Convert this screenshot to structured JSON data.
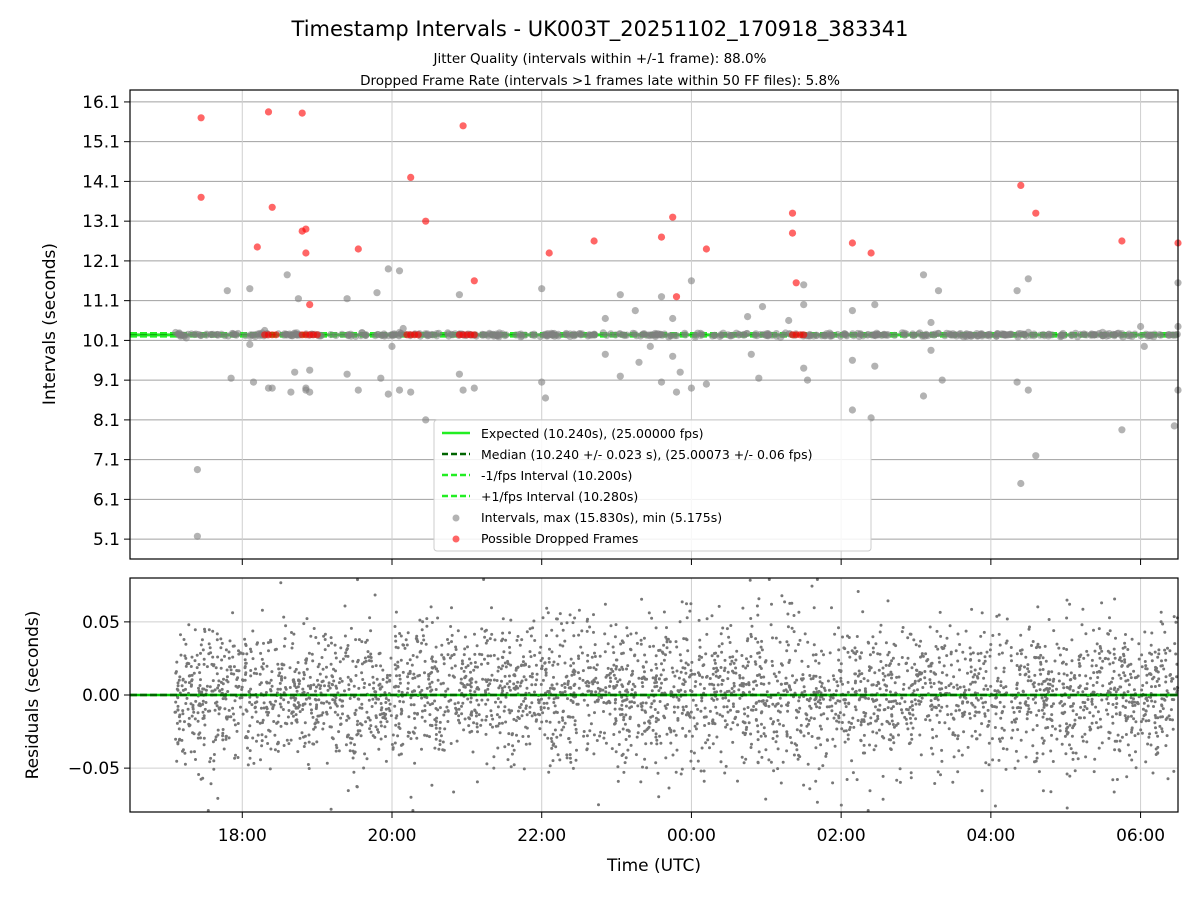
{
  "chart_data": [
    {
      "type": "scatter",
      "title": "Timestamp Intervals - UK003T_20251102_170918_383341",
      "subtitle_lines": [
        "Jitter Quality (intervals within +/-1 frame): 88.0%",
        "Dropped Frame Rate (intervals >1 frames late within 50 FF files): 5.8%"
      ],
      "ylabel": "Intervals (seconds)",
      "xlabel": "",
      "x_unit": "hours since 2025-11-02 00:00 UTC",
      "xlim": [
        16.5,
        30.5
      ],
      "ylim": [
        4.6,
        16.4
      ],
      "xtick_values": [
        18,
        20,
        22,
        24,
        26,
        28,
        30
      ],
      "ytick_values": [
        5.1,
        6.1,
        7.1,
        8.1,
        9.1,
        10.1,
        11.1,
        12.1,
        13.1,
        14.1,
        15.1,
        16.1
      ],
      "ytick_labels": [
        "5.1",
        "6.1",
        "7.1",
        "8.1",
        "9.1",
        "10.1",
        "11.1",
        "12.1",
        "13.1",
        "14.1",
        "15.1",
        "16.1"
      ],
      "grid": true,
      "legend_position": "lower-center",
      "lines": [
        {
          "label": "Expected (10.240s), (25.00000 fps)",
          "y": 10.24,
          "color": "#22ee22",
          "style": "solid"
        },
        {
          "label": "Median (10.240 +/- 0.023 s), (25.00073 +/- 0.06 fps)",
          "y": 10.24,
          "color": "#006400",
          "style": "dashed"
        },
        {
          "label": "-1/fps Interval (10.200s)",
          "y": 10.2,
          "color": "#22ee22",
          "style": "dashed"
        },
        {
          "label": "+1/fps Interval (10.280s)",
          "y": 10.28,
          "color": "#22ee22",
          "style": "dashed"
        }
      ],
      "series": [
        {
          "name": "Intervals, max (15.830s), min (5.175s)",
          "color": "#808080",
          "x_range": [
            17.1,
            30.5
          ],
          "baseline": 10.24,
          "outliers": [
            [
              17.4,
              6.85
            ],
            [
              17.4,
              5.17
            ],
            [
              17.8,
              11.35
            ],
            [
              17.85,
              9.15
            ],
            [
              18.1,
              11.4
            ],
            [
              18.1,
              10.0
            ],
            [
              18.15,
              9.05
            ],
            [
              18.3,
              10.35
            ],
            [
              18.35,
              8.9
            ],
            [
              18.4,
              8.9
            ],
            [
              18.6,
              11.75
            ],
            [
              18.65,
              8.8
            ],
            [
              18.7,
              9.3
            ],
            [
              18.75,
              11.15
            ],
            [
              18.85,
              8.9
            ],
            [
              18.85,
              8.85
            ],
            [
              18.9,
              8.8
            ],
            [
              18.9,
              9.35
            ],
            [
              19.4,
              11.15
            ],
            [
              19.4,
              9.25
            ],
            [
              19.55,
              8.85
            ],
            [
              19.8,
              11.3
            ],
            [
              19.85,
              9.15
            ],
            [
              19.95,
              11.9
            ],
            [
              19.95,
              8.75
            ],
            [
              20.0,
              9.95
            ],
            [
              20.1,
              11.85
            ],
            [
              20.1,
              8.85
            ],
            [
              20.15,
              10.4
            ],
            [
              20.25,
              8.8
            ],
            [
              20.45,
              8.1
            ],
            [
              20.9,
              11.25
            ],
            [
              20.9,
              9.25
            ],
            [
              20.95,
              8.85
            ],
            [
              21.1,
              8.9
            ],
            [
              22.0,
              11.4
            ],
            [
              22.0,
              9.05
            ],
            [
              22.05,
              8.65
            ],
            [
              22.85,
              10.65
            ],
            [
              22.85,
              9.75
            ],
            [
              23.05,
              11.25
            ],
            [
              23.05,
              9.2
            ],
            [
              23.25,
              10.85
            ],
            [
              23.3,
              9.55
            ],
            [
              23.45,
              9.95
            ],
            [
              23.6,
              11.2
            ],
            [
              23.6,
              9.05
            ],
            [
              23.75,
              10.65
            ],
            [
              23.75,
              9.7
            ],
            [
              23.85,
              9.3
            ],
            [
              23.8,
              8.8
            ],
            [
              24.0,
              11.6
            ],
            [
              24.0,
              8.9
            ],
            [
              24.2,
              9.0
            ],
            [
              24.75,
              10.7
            ],
            [
              24.8,
              9.75
            ],
            [
              24.95,
              10.95
            ],
            [
              24.9,
              9.15
            ],
            [
              25.3,
              10.6
            ],
            [
              25.5,
              11.5
            ],
            [
              25.5,
              9.4
            ],
            [
              25.5,
              11.0
            ],
            [
              25.55,
              9.1
            ],
            [
              26.15,
              10.85
            ],
            [
              26.15,
              9.6
            ],
            [
              26.15,
              8.35
            ],
            [
              26.4,
              8.15
            ],
            [
              26.45,
              11.0
            ],
            [
              26.45,
              9.45
            ],
            [
              27.1,
              11.75
            ],
            [
              27.1,
              8.7
            ],
            [
              27.2,
              10.55
            ],
            [
              27.2,
              9.85
            ],
            [
              27.3,
              11.35
            ],
            [
              27.35,
              9.1
            ],
            [
              28.35,
              11.35
            ],
            [
              28.35,
              9.05
            ],
            [
              28.4,
              6.5
            ],
            [
              28.5,
              11.65
            ],
            [
              28.5,
              8.85
            ],
            [
              28.6,
              7.2
            ],
            [
              29.75,
              7.85
            ],
            [
              30.0,
              10.45
            ],
            [
              30.05,
              9.95
            ],
            [
              30.5,
              11.55
            ],
            [
              30.5,
              10.45
            ],
            [
              30.5,
              8.85
            ],
            [
              30.45,
              7.95
            ]
          ]
        },
        {
          "name": "Possible Dropped Frames",
          "color": "#ff0000",
          "points": [
            [
              17.45,
              15.7
            ],
            [
              17.45,
              13.7
            ],
            [
              18.2,
              12.45
            ],
            [
              18.35,
              15.85
            ],
            [
              18.4,
              13.45
            ],
            [
              18.8,
              15.82
            ],
            [
              18.8,
              12.85
            ],
            [
              18.85,
              12.9
            ],
            [
              18.85,
              12.3
            ],
            [
              18.9,
              11.0
            ],
            [
              19.55,
              12.4
            ],
            [
              20.25,
              14.2
            ],
            [
              20.45,
              13.1
            ],
            [
              20.95,
              15.5
            ],
            [
              21.1,
              11.6
            ],
            [
              22.1,
              12.3
            ],
            [
              22.7,
              12.6
            ],
            [
              23.6,
              12.7
            ],
            [
              23.75,
              13.2
            ],
            [
              23.8,
              11.2
            ],
            [
              24.2,
              12.4
            ],
            [
              25.35,
              13.3
            ],
            [
              25.35,
              12.8
            ],
            [
              25.4,
              11.55
            ],
            [
              26.15,
              12.55
            ],
            [
              26.4,
              12.3
            ],
            [
              28.4,
              14.0
            ],
            [
              28.6,
              13.3
            ],
            [
              29.75,
              12.6
            ],
            [
              30.5,
              12.55
            ],
            [
              18.3,
              10.24
            ],
            [
              18.35,
              10.24
            ],
            [
              18.4,
              10.24
            ],
            [
              18.45,
              10.24
            ],
            [
              18.8,
              10.24
            ],
            [
              18.85,
              10.24
            ],
            [
              18.9,
              10.24
            ],
            [
              18.95,
              10.24
            ],
            [
              19.0,
              10.24
            ],
            [
              20.2,
              10.24
            ],
            [
              20.25,
              10.24
            ],
            [
              20.3,
              10.24
            ],
            [
              20.35,
              10.24
            ],
            [
              20.9,
              10.24
            ],
            [
              20.95,
              10.24
            ],
            [
              21.0,
              10.24
            ],
            [
              21.05,
              10.24
            ],
            [
              21.1,
              10.24
            ],
            [
              25.35,
              10.24
            ],
            [
              25.4,
              10.24
            ],
            [
              25.45,
              10.24
            ],
            [
              25.5,
              10.24
            ]
          ]
        }
      ]
    },
    {
      "type": "scatter",
      "title": "",
      "ylabel": "Residuals (seconds)",
      "xlabel": "Time (UTC)",
      "x_unit": "hours since 2025-11-02 00:00 UTC",
      "xlim": [
        16.5,
        30.5
      ],
      "ylim": [
        -0.08,
        0.08
      ],
      "xtick_values": [
        18,
        20,
        22,
        24,
        26,
        28,
        30
      ],
      "xtick_labels": [
        "18:00",
        "20:00",
        "22:00",
        "00:00",
        "02:00",
        "04:00",
        "06:00"
      ],
      "ytick_values": [
        -0.05,
        0.0,
        0.05
      ],
      "ytick_labels": [
        "−0.05",
        "0.00",
        "0.05"
      ],
      "grid": true,
      "lines": [
        {
          "y": 0.0,
          "color": "#00cc00",
          "style": "solid"
        },
        {
          "y": 0.0,
          "color": "#006400",
          "style": "dashed"
        }
      ],
      "series": [
        {
          "name": "",
          "color": "#777777",
          "x_range": [
            17.1,
            30.5
          ],
          "y_spread": 0.025,
          "approx_count": 4700
        }
      ]
    }
  ],
  "colors": {
    "expected": "#22ee22",
    "median": "#006400",
    "intervals": "#808080",
    "dropped": "#ff0000",
    "residuals": "#777777"
  }
}
